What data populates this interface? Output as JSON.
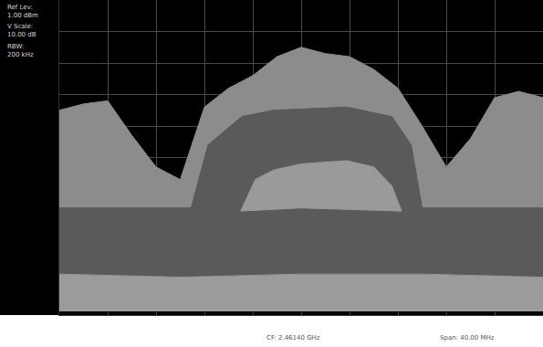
{
  "chart_data": {
    "type": "line",
    "annotations": [
      "Ref Lev:\n1.00 dBm",
      "V Scale:\n10.00 dB",
      "RBW:\n200 kHz",
      "CF: 2.46140 GHz",
      "Span: 40.00 MHz"
    ],
    "xlim": [
      2.4414,
      2.4814
    ],
    "xticks": [
      2.4414,
      2.4454,
      2.4494,
      2.4534,
      2.4574,
      2.4614,
      2.4654,
      2.4694,
      2.4734,
      2.4774,
      2.4814
    ],
    "ylim": [
      -99,
      1
    ],
    "yticks": [
      -99,
      -89,
      -79,
      -69,
      -59,
      -49,
      -39,
      -29,
      -19,
      -9,
      1
    ],
    "grid": true,
    "tick_labels": false,
    "series": [
      {
        "type": "line",
        "color": "#000000",
        "x": [
          2.4414,
          2.4814
        ],
        "values": [
          -98,
          -98
        ]
      },
      {
        "type": "area",
        "color": "#9c9c9c",
        "x": [
          2.4414,
          2.4514,
          2.4614,
          2.4714,
          2.4814
        ],
        "values": [
          -86,
          -87,
          -86,
          -86,
          -87
        ]
      },
      {
        "type": "area",
        "color": "#5a5a5a",
        "x": [
          2.4414,
          2.4523,
          2.4537,
          2.4565,
          2.4591,
          2.4652,
          2.4689,
          2.4705,
          2.4714,
          2.4814
        ],
        "values": [
          -65,
          -65,
          -45,
          -36,
          -34,
          -33,
          -36,
          -45,
          -65,
          -65
        ]
      },
      {
        "type": "area",
        "color": "#8c8c8c",
        "x": [
          2.4414,
          2.4434,
          2.4454,
          2.4474,
          2.4494,
          2.4514,
          2.4534,
          2.4554,
          2.4574,
          2.4594,
          2.4614,
          2.4634,
          2.4654,
          2.4674,
          2.4694,
          2.4714,
          2.4734,
          2.4754,
          2.4774,
          2.4794,
          2.4814
        ],
        "values": [
          -34,
          -32,
          -31,
          -42,
          -52,
          -56,
          -33,
          -27,
          -23,
          -17,
          -14,
          -16,
          -17,
          -21,
          -27,
          -39,
          -52,
          -43,
          -30,
          -28,
          -30
        ]
      },
      {
        "type": "line",
        "color": "#9a9a9a",
        "x": [
          2.4564,
          2.4614,
          2.4697
        ],
        "values": [
          -66,
          -65,
          -66
        ]
      },
      {
        "type": "area",
        "color": "#9a9a9a",
        "x": [
          2.4564,
          2.4576,
          2.4591,
          2.4614,
          2.4652,
          2.4674,
          2.4689,
          2.4697
        ],
        "values": [
          -66,
          -56,
          -53,
          -51,
          -50,
          -52,
          -58,
          -66
        ]
      }
    ]
  }
}
